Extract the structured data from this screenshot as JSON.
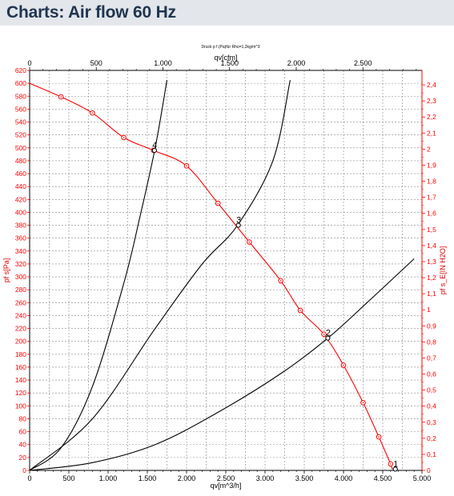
{
  "page": {
    "title": "Charts: Air flow 60 Hz"
  },
  "colors": {
    "header_bg": "#e3e6ea",
    "title": "#1f3550",
    "system_curve": "#000000",
    "fan_curve": "#ff0000"
  },
  "chart_data": {
    "type": "line",
    "subtitle": "Druck p f.(Pa)für Rho=1,2kg/m^3",
    "x_bottom": {
      "label": "qv[m^3/h]",
      "range": [
        0,
        5000
      ],
      "tick_labels": [
        "0",
        "500",
        "1.000",
        "1.500",
        "2.000",
        "2.500",
        "3.000",
        "3.500",
        "4.000",
        "4.500",
        "5.000"
      ]
    },
    "x_top": {
      "label": "qv[cfm]",
      "range": [
        0,
        2943
      ],
      "tick_labels": [
        "0",
        "500",
        "1.000",
        "1.500",
        "2.000",
        "2.500"
      ]
    },
    "y_left": {
      "label": "pf s[Pa]",
      "range": [
        0,
        620
      ],
      "tick_labels": [
        "0",
        "20",
        "40",
        "60",
        "80",
        "100",
        "120",
        "140",
        "160",
        "180",
        "200",
        "220",
        "240",
        "260",
        "280",
        "300",
        "320",
        "340",
        "360",
        "380",
        "400",
        "420",
        "440",
        "460",
        "480",
        "500",
        "520",
        "540",
        "560",
        "580",
        "600",
        "620"
      ]
    },
    "y_right": {
      "label": "pf s_E[IN H2O]",
      "range": [
        0,
        2.49
      ],
      "tick_labels": [
        "0",
        "0,1",
        "0,2",
        "0,3",
        "0,4",
        "0,5",
        "0,6",
        "0,7",
        "0,8",
        "0,9",
        "1",
        "1,1",
        "1,2",
        "1,3",
        "1,4",
        "1,5",
        "1,6",
        "1,7",
        "1,8",
        "1,9",
        "2",
        "2,1",
        "2,2",
        "2,3",
        "2,4"
      ]
    },
    "grid": true,
    "series": [
      {
        "name": "pf s",
        "points": [
          [
            0,
            600
          ],
          [
            400,
            579
          ],
          [
            800,
            554
          ],
          [
            1200,
            516
          ],
          [
            1580,
            496
          ],
          [
            2000,
            472
          ],
          [
            2400,
            414
          ],
          [
            2800,
            354
          ],
          [
            3200,
            294
          ],
          [
            3450,
            248
          ],
          [
            3750,
            211
          ],
          [
            4000,
            163
          ],
          [
            4250,
            105
          ],
          [
            4450,
            52
          ],
          [
            4600,
            10
          ],
          [
            4620,
            2
          ]
        ]
      },
      {
        "points": [
          [
            0,
            0
          ],
          [
            400,
            35
          ],
          [
            800,
            130
          ],
          [
            1200,
            290
          ],
          [
            1400,
            390
          ],
          [
            1600,
            500
          ],
          [
            1750,
            605
          ]
        ]
      },
      {
        "points": [
          [
            0,
            0
          ],
          [
            800,
            80
          ],
          [
            1600,
            220
          ],
          [
            2200,
            320
          ],
          [
            2650,
            380
          ],
          [
            3100,
            480
          ],
          [
            3320,
            605
          ]
        ]
      },
      {
        "points": [
          [
            0,
            0
          ],
          [
            800,
            12
          ],
          [
            1600,
            40
          ],
          [
            2400,
            90
          ],
          [
            3200,
            150
          ],
          [
            3800,
            205
          ],
          [
            4300,
            260
          ],
          [
            4900,
            328
          ]
        ]
      }
    ],
    "operating_points": [
      {
        "label": "4",
        "x": 1590,
        "y": 496
      },
      {
        "label": "3",
        "x": 2660,
        "y": 380
      },
      {
        "label": "2",
        "x": 3800,
        "y": 205
      },
      {
        "label": "1",
        "x": 4660,
        "y": 2
      }
    ]
  }
}
